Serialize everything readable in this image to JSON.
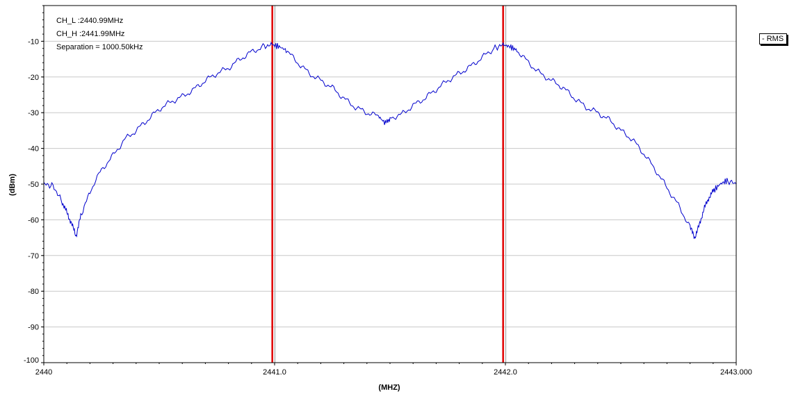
{
  "chart_data": {
    "type": "line",
    "xlabel": "(MHZ)",
    "ylabel": "(dBm)",
    "xlim": [
      2440,
      2443
    ],
    "ylim": [
      -100,
      0
    ],
    "x_ticks": [
      2440,
      2441,
      2442,
      2443
    ],
    "x_tick_labels": [
      "2440",
      "2441.0",
      "2442.0",
      "2443.000"
    ],
    "y_ticks": [
      -10,
      -20,
      -30,
      -40,
      -50,
      -60,
      -70,
      -80,
      -90,
      -100
    ],
    "y_tick_labels": [
      "-10",
      "-20",
      "-30",
      "-40",
      "-50",
      "-60",
      "-70",
      "-80",
      "-90",
      "-100"
    ],
    "grid": true,
    "legend_position": "top-right",
    "series": [
      {
        "name": "RMS",
        "color": "#0000cc",
        "x": [
          2440.0,
          2440.04,
          2440.08,
          2440.1,
          2440.12,
          2440.14,
          2440.16,
          2440.2,
          2440.25,
          2440.3,
          2440.35,
          2440.4,
          2440.45,
          2440.5,
          2440.55,
          2440.6,
          2440.65,
          2440.7,
          2440.75,
          2440.8,
          2440.85,
          2440.9,
          2440.95,
          2440.99,
          2441.02,
          2441.05,
          2441.1,
          2441.15,
          2441.2,
          2441.25,
          2441.3,
          2441.35,
          2441.4,
          2441.45,
          2441.48,
          2441.5,
          2441.55,
          2441.6,
          2441.65,
          2441.7,
          2441.75,
          2441.8,
          2441.85,
          2441.9,
          2441.95,
          2441.99,
          2442.02,
          2442.05,
          2442.1,
          2442.15,
          2442.2,
          2442.25,
          2442.3,
          2442.35,
          2442.4,
          2442.45,
          2442.5,
          2442.55,
          2442.6,
          2442.65,
          2442.7,
          2442.75,
          2442.8,
          2442.82,
          2442.84,
          2442.86,
          2442.88,
          2442.9,
          2442.93,
          2442.96,
          2443.0
        ],
        "values": [
          -50,
          -50.5,
          -55,
          -58,
          -61,
          -64.5,
          -59,
          -52,
          -46,
          -42,
          -37.5,
          -35,
          -32,
          -29,
          -27,
          -25.5,
          -23.5,
          -21,
          -19,
          -17.5,
          -15,
          -13,
          -11.5,
          -11,
          -11.5,
          -12.5,
          -16,
          -19,
          -21,
          -23,
          -26,
          -28.5,
          -30,
          -31,
          -33,
          -31.5,
          -30.5,
          -28,
          -26,
          -23.5,
          -21,
          -19,
          -17,
          -14.5,
          -12,
          -11,
          -11.5,
          -12.5,
          -16,
          -19,
          -21,
          -23,
          -26,
          -28.5,
          -30,
          -32,
          -35,
          -37.5,
          -41.5,
          -46,
          -51,
          -56,
          -62,
          -65,
          -61.5,
          -57,
          -54,
          -52,
          -50,
          -49,
          -50
        ]
      }
    ],
    "markers": [
      {
        "name": "CH_L",
        "x": 2440.99,
        "color": "#e00000"
      },
      {
        "name": "CH_H",
        "x": 2441.99,
        "color": "#e00000"
      }
    ],
    "annotations": [
      "CH_L :2440.99MHz",
      "CH_H :2441.99MHz",
      "Separation = 1000.50kHz"
    ],
    "legend_label": "RMS"
  }
}
